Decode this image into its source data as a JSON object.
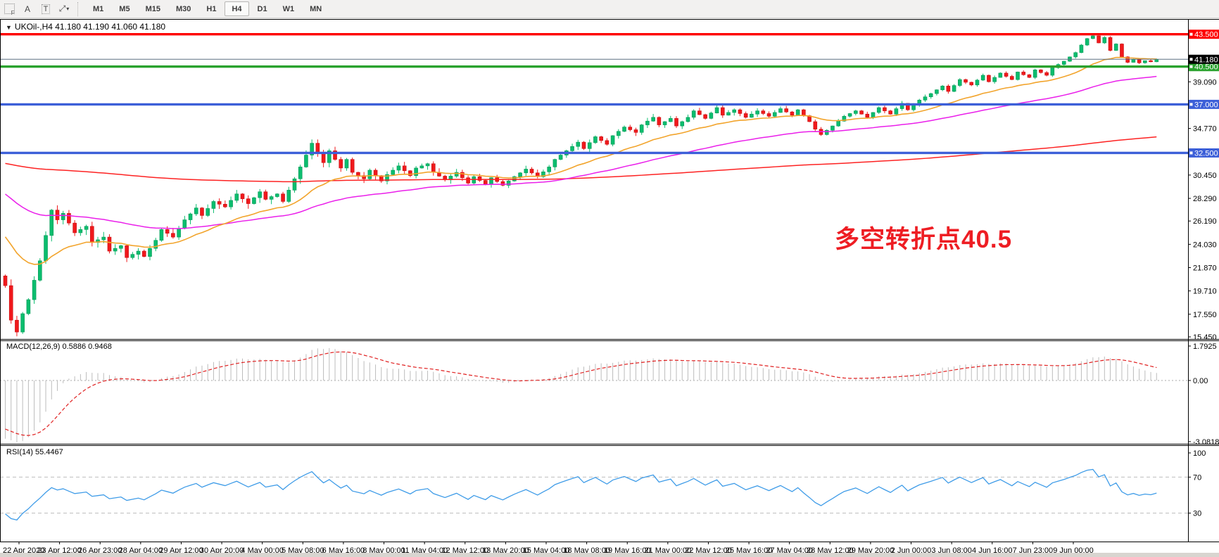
{
  "toolbar": {
    "tools": [
      {
        "name": "snap-grid-icon",
        "glyph": "",
        "kind": "gridF",
        "sub": "F"
      },
      {
        "name": "insert-text-icon",
        "glyph": "A",
        "kind": "plain"
      },
      {
        "name": "insert-label-icon",
        "glyph": "T",
        "kind": "tbox"
      },
      {
        "name": "arrow-tools-icon",
        "glyph": "⤢",
        "kind": "plain",
        "caret": "▾"
      }
    ],
    "timeframes": [
      "M1",
      "M5",
      "M15",
      "M30",
      "H1",
      "H4",
      "D1",
      "W1",
      "MN"
    ],
    "active_timeframe": "H4"
  },
  "chart": {
    "title_caret": "▼",
    "title": "UKOil-,H4  41.180 41.190 41.060 41.180",
    "symbol": "UKOil-",
    "period": "H4",
    "ohlc": {
      "open": "41.180",
      "high": "41.190",
      "low": "41.060",
      "close": "41.180"
    },
    "current_price": {
      "label": "41.180",
      "value": 41.18,
      "badge_color": "#000000",
      "line_color": "#5f7182"
    },
    "annotation": {
      "text": "多空转折点40.5",
      "color": "#ee1d23"
    },
    "levels": [
      {
        "label": "43.500",
        "price": 43.5,
        "color": "#fe0000"
      },
      {
        "label": "40.500",
        "price": 40.5,
        "color": "#2aa22e"
      },
      {
        "label": "37.000",
        "price": 37.0,
        "color": "#3c5fd8"
      },
      {
        "label": "32.500",
        "price": 32.5,
        "color": "#3c5fd8"
      }
    ],
    "y_ticks": [
      {
        "label": "39.090",
        "price": 39.09
      },
      {
        "label": "34.770",
        "price": 34.77
      },
      {
        "label": "30.450",
        "price": 30.45
      },
      {
        "label": "28.290",
        "price": 28.29
      },
      {
        "label": "26.190",
        "price": 26.19
      },
      {
        "label": "24.030",
        "price": 24.03
      },
      {
        "label": "21.870",
        "price": 21.87
      },
      {
        "label": "19.710",
        "price": 19.71
      },
      {
        "label": "17.550",
        "price": 17.55
      },
      {
        "label": "15.450",
        "price": 15.45
      }
    ]
  },
  "macd": {
    "label": "MACD(12,26,9) 0.5886 0.9468",
    "params": "12,26,9",
    "main_value": "0.5886",
    "signal_value": "0.9468",
    "ticks": [
      {
        "label": "1.7925",
        "value": 1.7925
      },
      {
        "label": "0.00",
        "value": 0
      },
      {
        "label": "-3.0818",
        "value": -3.0818
      }
    ],
    "histogram_color": "#bcbcbc",
    "signal_color": "#e02020"
  },
  "rsi": {
    "label": "RSI(14) 55.4467",
    "period": "14",
    "value": "55.4467",
    "ticks": [
      {
        "label": "100",
        "value": 100
      },
      {
        "label": "70",
        "value": 70
      },
      {
        "label": "30",
        "value": 30
      }
    ],
    "line_color": "#3f9ce8"
  },
  "x_axis": {
    "labels": [
      "22 Apr 2020",
      "23 Apr 12:00",
      "26 Apr 23:00",
      "28 Apr 04:00",
      "29 Apr 12:00",
      "30 Apr 20:00",
      "4 May 00:00",
      "5 May 08:00",
      "6 May 16:00",
      "8 May 00:00",
      "11 May 04:00",
      "12 May 12:00",
      "13 May 20:00",
      "15 May 04:00",
      "18 May 08:00",
      "19 May 16:00",
      "21 May 00:00",
      "22 May 12:00",
      "25 May 16:00",
      "27 May 04:00",
      "28 May 12:00",
      "29 May 20:00",
      "2 Jun 00:00",
      "3 Jun 08:00",
      "4 Jun 16:00",
      "7 Jun 23:00",
      "9 Jun 00:00"
    ]
  },
  "chart_data": {
    "type": "candlestick",
    "instrument": "UKOil",
    "timeframe": "H4",
    "ylim": [
      15.45,
      44.85
    ],
    "candle_count": 200,
    "colors": {
      "up": "#0bbd6e",
      "up_stroke": "#089a58",
      "down": "#f0191c",
      "down_stroke": "#c81013",
      "ma_fast": "#f2a42c",
      "ma_mid": "#ea1fea",
      "ma_slow": "#fd2222"
    },
    "moving_averages": [
      {
        "name": "fast-ema",
        "period": 20,
        "seed": 25.2,
        "color": "#f2a42c"
      },
      {
        "name": "mid-ema",
        "period": 55,
        "seed": 29.0,
        "color": "#ea1fea"
      },
      {
        "name": "slow-ema",
        "period": 300,
        "seed": 31.6,
        "color": "#fd2222"
      }
    ],
    "price_anchors": [
      [
        0,
        20.2
      ],
      [
        1,
        17.0
      ],
      [
        2,
        15.9
      ],
      [
        3,
        17.6
      ],
      [
        4,
        18.9
      ],
      [
        6,
        22.5
      ],
      [
        8,
        27.2
      ],
      [
        9,
        26.3
      ],
      [
        10,
        26.9
      ],
      [
        12,
        25.1
      ],
      [
        14,
        25.7
      ],
      [
        15,
        24.2
      ],
      [
        17,
        24.7
      ],
      [
        18,
        23.4
      ],
      [
        20,
        23.9
      ],
      [
        21,
        22.8
      ],
      [
        23,
        23.4
      ],
      [
        24,
        22.9
      ],
      [
        26,
        24.4
      ],
      [
        27,
        25.4
      ],
      [
        29,
        24.7
      ],
      [
        31,
        26.3
      ],
      [
        33,
        27.4
      ],
      [
        34,
        26.7
      ],
      [
        36,
        28.0
      ],
      [
        38,
        27.5
      ],
      [
        40,
        28.7
      ],
      [
        42,
        27.8
      ],
      [
        44,
        28.9
      ],
      [
        45,
        28.2
      ],
      [
        47,
        28.7
      ],
      [
        48,
        28.0
      ],
      [
        50,
        30.1
      ],
      [
        52,
        32.3
      ],
      [
        53,
        33.4
      ],
      [
        54,
        32.5
      ],
      [
        55,
        31.6
      ],
      [
        56,
        32.7
      ],
      [
        58,
        31.1
      ],
      [
        59,
        31.9
      ],
      [
        60,
        30.7
      ],
      [
        62,
        30.1
      ],
      [
        63,
        30.9
      ],
      [
        65,
        29.9
      ],
      [
        66,
        30.5
      ],
      [
        68,
        31.3
      ],
      [
        70,
        30.4
      ],
      [
        71,
        31.1
      ],
      [
        73,
        31.5
      ],
      [
        74,
        30.7
      ],
      [
        76,
        30.0
      ],
      [
        78,
        30.7
      ],
      [
        80,
        29.7
      ],
      [
        81,
        30.3
      ],
      [
        83,
        29.6
      ],
      [
        84,
        30.2
      ],
      [
        86,
        29.5
      ],
      [
        88,
        30.3
      ],
      [
        90,
        31.0
      ],
      [
        92,
        30.3
      ],
      [
        94,
        31.2
      ],
      [
        95,
        31.9
      ],
      [
        97,
        32.7
      ],
      [
        99,
        33.5
      ],
      [
        100,
        32.9
      ],
      [
        102,
        34.0
      ],
      [
        104,
        33.3
      ],
      [
        105,
        34.1
      ],
      [
        107,
        34.9
      ],
      [
        109,
        34.4
      ],
      [
        110,
        35.1
      ],
      [
        112,
        35.8
      ],
      [
        113,
        35.1
      ],
      [
        115,
        35.7
      ],
      [
        116,
        35.0
      ],
      [
        118,
        35.8
      ],
      [
        119,
        36.4
      ],
      [
        121,
        35.7
      ],
      [
        123,
        36.7
      ],
      [
        124,
        36.0
      ],
      [
        126,
        36.5
      ],
      [
        128,
        35.8
      ],
      [
        130,
        36.4
      ],
      [
        132,
        35.9
      ],
      [
        134,
        36.6
      ],
      [
        136,
        36.0
      ],
      [
        137,
        36.5
      ],
      [
        139,
        35.4
      ],
      [
        140,
        34.7
      ],
      [
        141,
        34.2
      ],
      [
        143,
        35.0
      ],
      [
        145,
        35.9
      ],
      [
        147,
        36.4
      ],
      [
        149,
        35.8
      ],
      [
        151,
        36.7
      ],
      [
        153,
        36.1
      ],
      [
        155,
        37.1
      ],
      [
        156,
        36.5
      ],
      [
        158,
        37.4
      ],
      [
        160,
        38.0
      ],
      [
        162,
        38.7
      ],
      [
        163,
        38.2
      ],
      [
        165,
        39.3
      ],
      [
        167,
        38.8
      ],
      [
        169,
        39.7
      ],
      [
        170,
        39.1
      ],
      [
        172,
        39.9
      ],
      [
        174,
        39.3
      ],
      [
        175,
        40.0
      ],
      [
        177,
        39.5
      ],
      [
        178,
        40.2
      ],
      [
        180,
        39.7
      ],
      [
        181,
        40.4
      ],
      [
        183,
        41.0
      ],
      [
        185,
        41.8
      ],
      [
        186,
        42.5
      ],
      [
        187,
        43.1
      ],
      [
        188,
        43.35
      ],
      [
        189,
        42.7
      ],
      [
        190,
        43.2
      ],
      [
        191,
        42.0
      ],
      [
        192,
        42.6
      ],
      [
        193,
        41.4
      ],
      [
        194,
        40.9
      ],
      [
        195,
        41.15
      ],
      [
        196,
        40.85
      ],
      [
        197,
        41.05
      ],
      [
        198,
        40.95
      ],
      [
        199,
        41.18
      ]
    ]
  }
}
